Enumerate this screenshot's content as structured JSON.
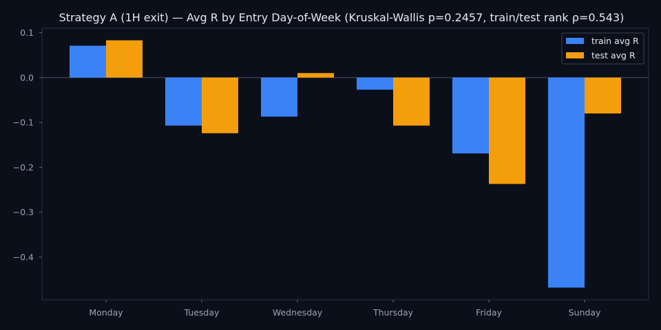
{
  "chart_data": {
    "type": "bar",
    "title": "Strategy A (1H exit) — Avg R by Entry Day-of-Week (Kruskal-Wallis p=0.2457, train/test rank ρ=0.543)",
    "xlabel": "",
    "ylabel": "",
    "categories": [
      "Monday",
      "Tuesday",
      "Wednesday",
      "Thursday",
      "Friday",
      "Sunday"
    ],
    "series": [
      {
        "name": "train avg R",
        "color": "#3b82f6",
        "values": [
          0.071,
          -0.107,
          -0.087,
          -0.027,
          -0.169,
          -0.468
        ]
      },
      {
        "name": "test avg R",
        "color": "#f59e0b",
        "values": [
          0.083,
          -0.124,
          0.01,
          -0.107,
          -0.237,
          -0.08
        ]
      }
    ],
    "ylim": [
      -0.495,
      0.11
    ],
    "yticks": [
      {
        "value": 0.1,
        "label": "0.1"
      },
      {
        "value": 0.0,
        "label": "0.0"
      },
      {
        "value": -0.1,
        "label": "−0.1"
      },
      {
        "value": -0.2,
        "label": "−0.2"
      },
      {
        "value": -0.3,
        "label": "−0.3"
      },
      {
        "value": -0.4,
        "label": "−0.4"
      }
    ],
    "zero_line": true,
    "grid": false,
    "legend_position": "top-right",
    "colors": {
      "background": "#0b0f19",
      "axes_frame": "#2a3142",
      "zero_line": "#4b5568",
      "tick_text": "#9aa3b5",
      "title_text": "#e6e8ee",
      "legend_bg": "#0b0f19",
      "legend_border": "#3a4254"
    }
  }
}
